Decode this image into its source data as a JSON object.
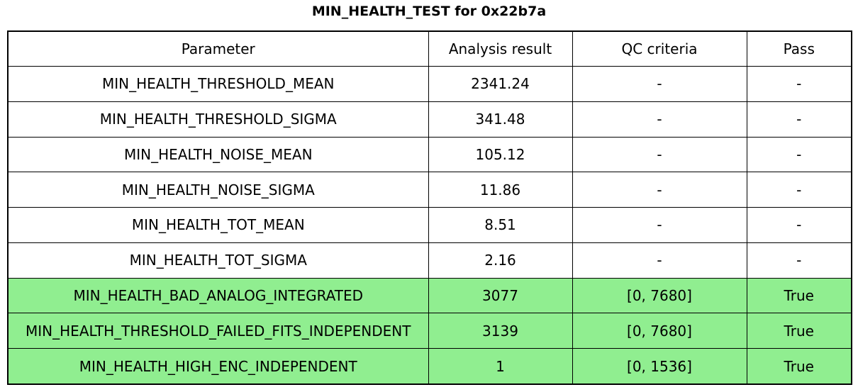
{
  "title": "MIN_HEALTH_TEST for 0x22b7a",
  "colors": {
    "highlight_green": "#90ee90",
    "border": "#000000",
    "background": "#ffffff",
    "text": "#000000"
  },
  "table": {
    "columns": [
      "Parameter",
      "Analysis result",
      "QC criteria",
      "Pass"
    ],
    "rows": [
      {
        "parameter": "MIN_HEALTH_THRESHOLD_MEAN",
        "analysis_result": "2341.24",
        "qc_criteria": "-",
        "pass": "-",
        "highlighted": false
      },
      {
        "parameter": "MIN_HEALTH_THRESHOLD_SIGMA",
        "analysis_result": "341.48",
        "qc_criteria": "-",
        "pass": "-",
        "highlighted": false
      },
      {
        "parameter": "MIN_HEALTH_NOISE_MEAN",
        "analysis_result": "105.12",
        "qc_criteria": "-",
        "pass": "-",
        "highlighted": false
      },
      {
        "parameter": "MIN_HEALTH_NOISE_SIGMA",
        "analysis_result": "11.86",
        "qc_criteria": "-",
        "pass": "-",
        "highlighted": false
      },
      {
        "parameter": "MIN_HEALTH_TOT_MEAN",
        "analysis_result": "8.51",
        "qc_criteria": "-",
        "pass": "-",
        "highlighted": false
      },
      {
        "parameter": "MIN_HEALTH_TOT_SIGMA",
        "analysis_result": "2.16",
        "qc_criteria": "-",
        "pass": "-",
        "highlighted": false
      },
      {
        "parameter": "MIN_HEALTH_BAD_ANALOG_INTEGRATED",
        "analysis_result": "3077",
        "qc_criteria": "[0, 7680]",
        "pass": "True",
        "highlighted": true
      },
      {
        "parameter": "MIN_HEALTH_THRESHOLD_FAILED_FITS_INDEPENDENT",
        "analysis_result": "3139",
        "qc_criteria": "[0, 7680]",
        "pass": "True",
        "highlighted": true
      },
      {
        "parameter": "MIN_HEALTH_HIGH_ENC_INDEPENDENT",
        "analysis_result": "1",
        "qc_criteria": "[0, 1536]",
        "pass": "True",
        "highlighted": true
      }
    ]
  },
  "chart_data": {
    "type": "table",
    "title": "MIN_HEALTH_TEST for 0x22b7a",
    "columns": [
      "Parameter",
      "Analysis result",
      "QC criteria",
      "Pass"
    ],
    "rows": [
      [
        "MIN_HEALTH_THRESHOLD_MEAN",
        "2341.24",
        "-",
        "-"
      ],
      [
        "MIN_HEALTH_THRESHOLD_SIGMA",
        "341.48",
        "-",
        "-"
      ],
      [
        "MIN_HEALTH_NOISE_MEAN",
        "105.12",
        "-",
        "-"
      ],
      [
        "MIN_HEALTH_NOISE_SIGMA",
        "11.86",
        "-",
        "-"
      ],
      [
        "MIN_HEALTH_TOT_MEAN",
        "8.51",
        "-",
        "-"
      ],
      [
        "MIN_HEALTH_TOT_SIGMA",
        "2.16",
        "-",
        "-"
      ],
      [
        "MIN_HEALTH_BAD_ANALOG_INTEGRATED",
        "3077",
        "[0, 7680]",
        "True"
      ],
      [
        "MIN_HEALTH_THRESHOLD_FAILED_FITS_INDEPENDENT",
        "3139",
        "[0, 7680]",
        "True"
      ],
      [
        "MIN_HEALTH_HIGH_ENC_INDEPENDENT",
        "1",
        "[0, 1536]",
        "True"
      ]
    ],
    "highlighted_row_indices": [
      6,
      7,
      8
    ],
    "highlight_color": "#90ee90",
    "legend_position": "none",
    "grid": true
  }
}
